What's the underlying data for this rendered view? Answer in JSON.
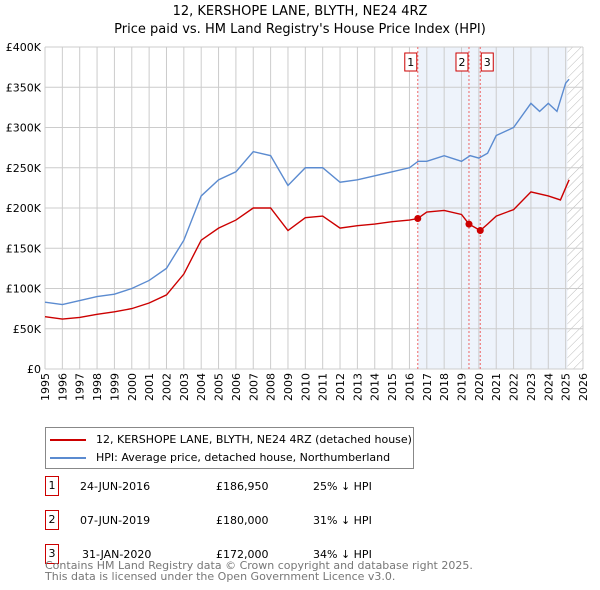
{
  "chart_data": {
    "type": "line",
    "title": "12, KERSHOPE LANE, BLYTH, NE24 4RZ",
    "subtitle": "Price paid vs. HM Land Registry's House Price Index (HPI)",
    "ylim": [
      0,
      400000
    ],
    "xlim": [
      1995,
      2026
    ],
    "yticks": [
      {
        "v": 0,
        "label": "£0"
      },
      {
        "v": 50000,
        "label": "£50K"
      },
      {
        "v": 100000,
        "label": "£100K"
      },
      {
        "v": 150000,
        "label": "£150K"
      },
      {
        "v": 200000,
        "label": "£200K"
      },
      {
        "v": 250000,
        "label": "£250K"
      },
      {
        "v": 300000,
        "label": "£300K"
      },
      {
        "v": 350000,
        "label": "£350K"
      },
      {
        "v": 400000,
        "label": "£400K"
      }
    ],
    "xticks": [
      "1995",
      "1996",
      "1997",
      "1998",
      "1999",
      "2000",
      "2001",
      "2002",
      "2003",
      "2004",
      "2005",
      "2006",
      "2007",
      "2008",
      "2009",
      "2010",
      "2011",
      "2012",
      "2013",
      "2014",
      "2015",
      "2016",
      "2017",
      "2018",
      "2019",
      "2020",
      "2021",
      "2022",
      "2023",
      "2024",
      "2025",
      "2026"
    ],
    "series": [
      {
        "name": "12, KERSHOPE LANE, BLYTH, NE24 4RZ (detached house)",
        "color": "#cc0000",
        "x": [
          1995,
          1996,
          1997,
          1998,
          1999,
          2000,
          2001,
          2002,
          2003,
          2004,
          2005,
          2006,
          2007,
          2008,
          2009,
          2010,
          2011,
          2012,
          2013,
          2014,
          2015,
          2016,
          2016.48,
          2017,
          2018,
          2019,
          2019.43,
          2020.08,
          2020.5,
          2021,
          2022,
          2023,
          2024,
          2024.7,
          2025.2
        ],
        "y": [
          65000,
          62000,
          64000,
          68000,
          71000,
          75000,
          82000,
          92000,
          118000,
          160000,
          175000,
          185000,
          200000,
          200000,
          172000,
          188000,
          190000,
          175000,
          178000,
          180000,
          183000,
          185000,
          186950,
          195000,
          197000,
          192000,
          180000,
          172000,
          180000,
          190000,
          198000,
          220000,
          215000,
          210000,
          235000
        ]
      },
      {
        "name": "HPI: Average price, detached house, Northumberland",
        "color": "#5b8bd0",
        "x": [
          1995,
          1996,
          1997,
          1998,
          1999,
          2000,
          2001,
          2002,
          2003,
          2004,
          2005,
          2006,
          2007,
          2008,
          2009,
          2010,
          2011,
          2012,
          2013,
          2014,
          2015,
          2016,
          2016.5,
          2017,
          2018,
          2019,
          2019.5,
          2020,
          2020.5,
          2021,
          2022,
          2023,
          2023.5,
          2024,
          2024.5,
          2025,
          2025.2
        ],
        "y": [
          83000,
          80000,
          85000,
          90000,
          93000,
          100000,
          110000,
          125000,
          160000,
          215000,
          235000,
          245000,
          270000,
          265000,
          228000,
          250000,
          250000,
          232000,
          235000,
          240000,
          245000,
          250000,
          258000,
          258000,
          265000,
          258000,
          265000,
          262000,
          268000,
          290000,
          300000,
          330000,
          320000,
          330000,
          320000,
          355000,
          360000
        ]
      }
    ],
    "sales": [
      {
        "id": "1",
        "x": 2016.48,
        "date": "24-JUN-2016",
        "price": "£186,950",
        "value": 186950,
        "hpi": "25% ↓ HPI"
      },
      {
        "id": "2",
        "x": 2019.43,
        "date": "07-JUN-2019",
        "price": "£180,000",
        "value": 180000,
        "hpi": "31% ↓ HPI"
      },
      {
        "id": "3",
        "x": 2020.08,
        "date": "31-JAN-2020",
        "price": "£172,000",
        "value": 172000,
        "hpi": "34% ↓ HPI"
      }
    ]
  },
  "footer": [
    "Contains HM Land Registry data © Crown copyright and database right 2025.",
    "This data is licensed under the Open Government Licence v3.0."
  ]
}
